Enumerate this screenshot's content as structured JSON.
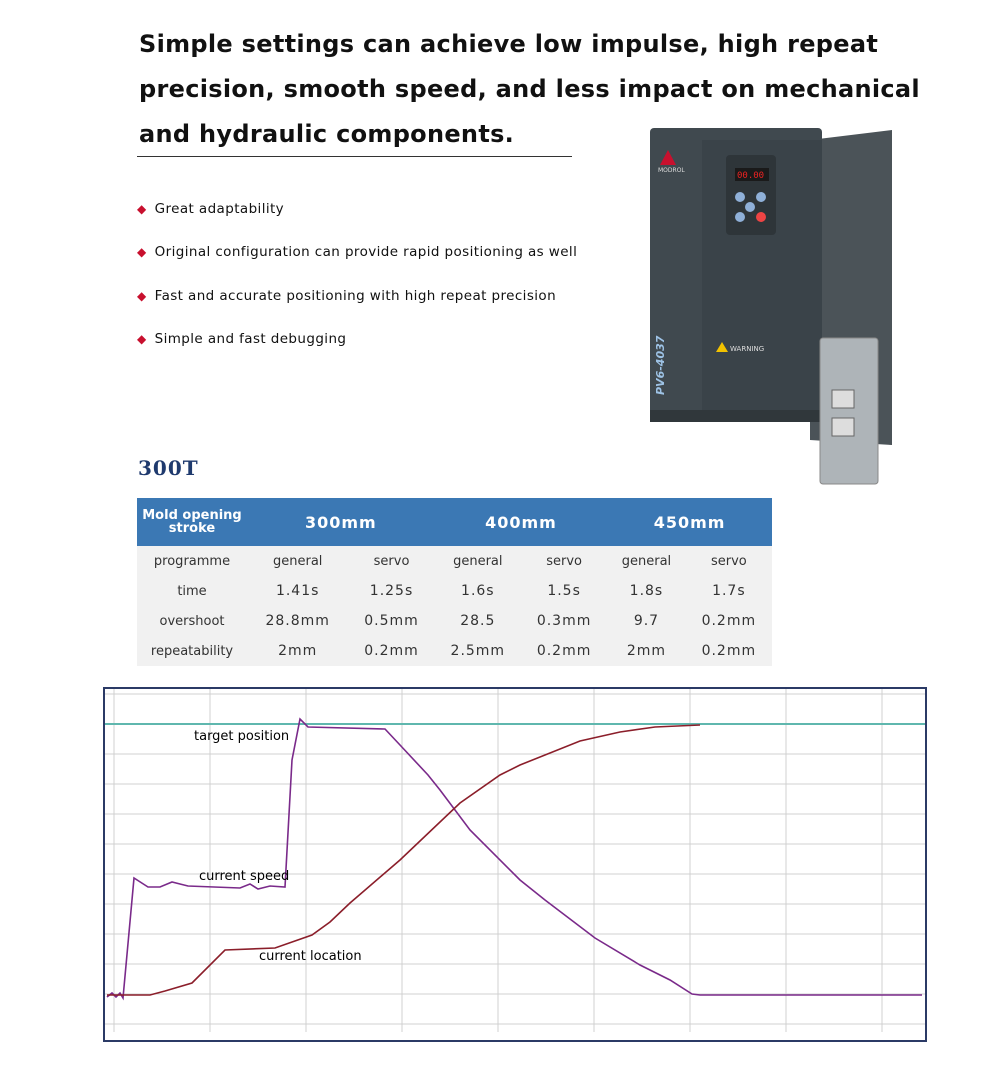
{
  "header": {
    "lines": [
      "Simple settings can achieve low impulse, high repeat",
      "precision, smooth speed, and less impact on mechanical",
      "and hydraulic components."
    ]
  },
  "features": [
    "Great adaptability",
    "Original configuration can provide rapid positioning as well",
    "Fast and accurate positioning with high repeat precision",
    "Simple and fast debugging"
  ],
  "product": {
    "brand": "MODROL",
    "model": "PV6-4037",
    "warning": "WARNING"
  },
  "table": {
    "title": "300T",
    "header": [
      "Mold opening stroke",
      "300mm",
      "400mm",
      "450mm"
    ],
    "rows": [
      [
        "programme",
        "general",
        "servo",
        "general",
        "servo",
        "general",
        "servo"
      ],
      [
        "time",
        "1.41s",
        "1.25s",
        "1.6s",
        "1.5s",
        "1.8s",
        "1.7s"
      ],
      [
        "overshoot",
        "28.8mm",
        "0.5mm",
        "28.5",
        "0.3mm",
        "9.7",
        "0.2mm"
      ],
      [
        "repeatability",
        "2mm",
        "0.2mm",
        "2.5mm",
        "0.2mm",
        "2mm",
        "0.2mm"
      ]
    ]
  },
  "chart": {
    "labels": [
      "target position",
      "current speed",
      "current location"
    ]
  }
}
